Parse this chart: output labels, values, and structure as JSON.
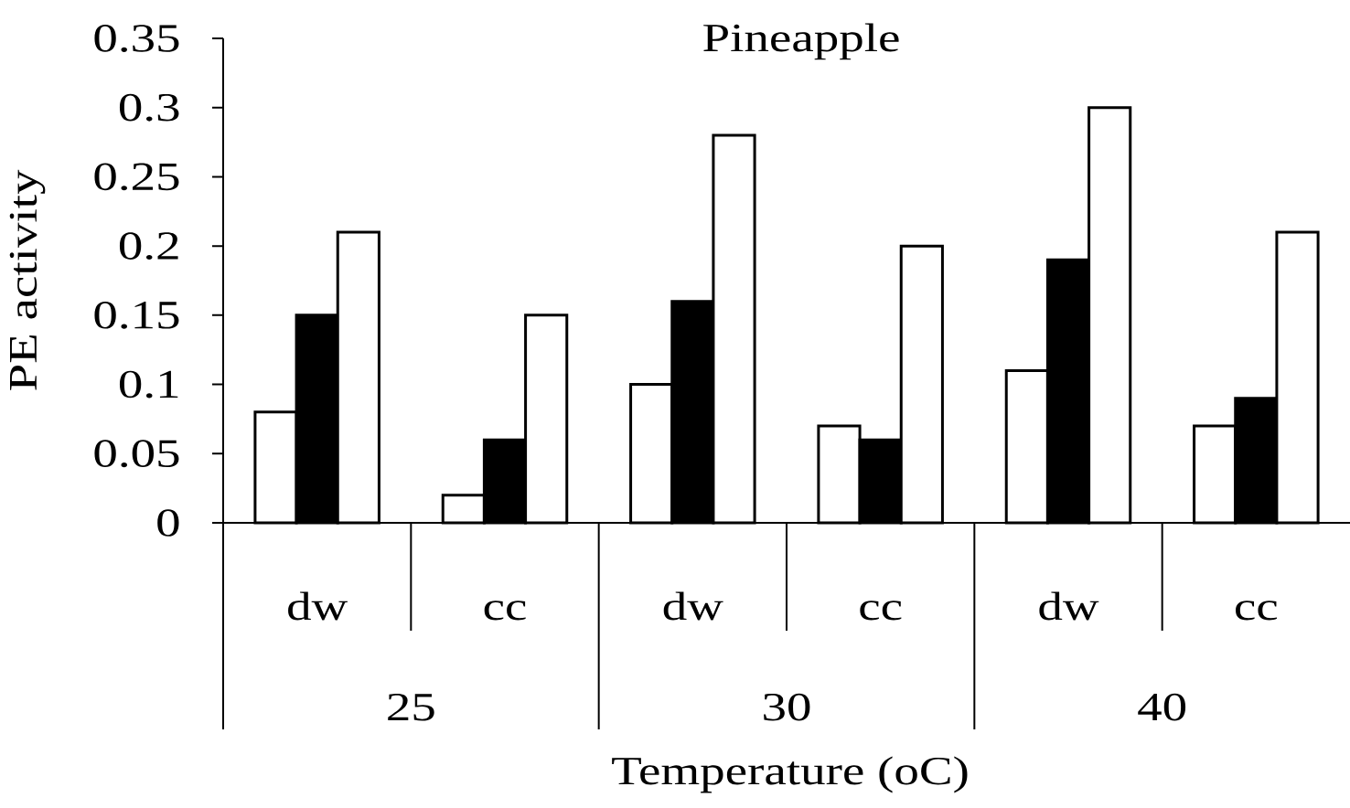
{
  "chart_data": {
    "type": "bar",
    "title": "Pineapple",
    "xlabel": "Temperature (oC)",
    "ylabel": "PE activity",
    "categories": [
      "dw",
      "cc",
      "dw",
      "cc",
      "dw",
      "cc"
    ],
    "annotations": [
      "25",
      "30",
      "40"
    ],
    "series": [
      {
        "color": "#ffffff",
        "values": [
          0.08,
          0.02,
          0.1,
          0.07,
          0.11,
          0.07
        ]
      },
      {
        "color": "#000000",
        "values": [
          0.15,
          0.06,
          0.16,
          0.06,
          0.19,
          0.09
        ]
      },
      {
        "color": "#ffffff",
        "values": [
          0.21,
          0.15,
          0.28,
          0.2,
          0.3,
          0.21
        ]
      }
    ],
    "ylim": [
      0,
      0.35
    ],
    "yticks": [
      0,
      0.05,
      0.1,
      0.15,
      0.2,
      0.25,
      0.3,
      0.35
    ]
  }
}
